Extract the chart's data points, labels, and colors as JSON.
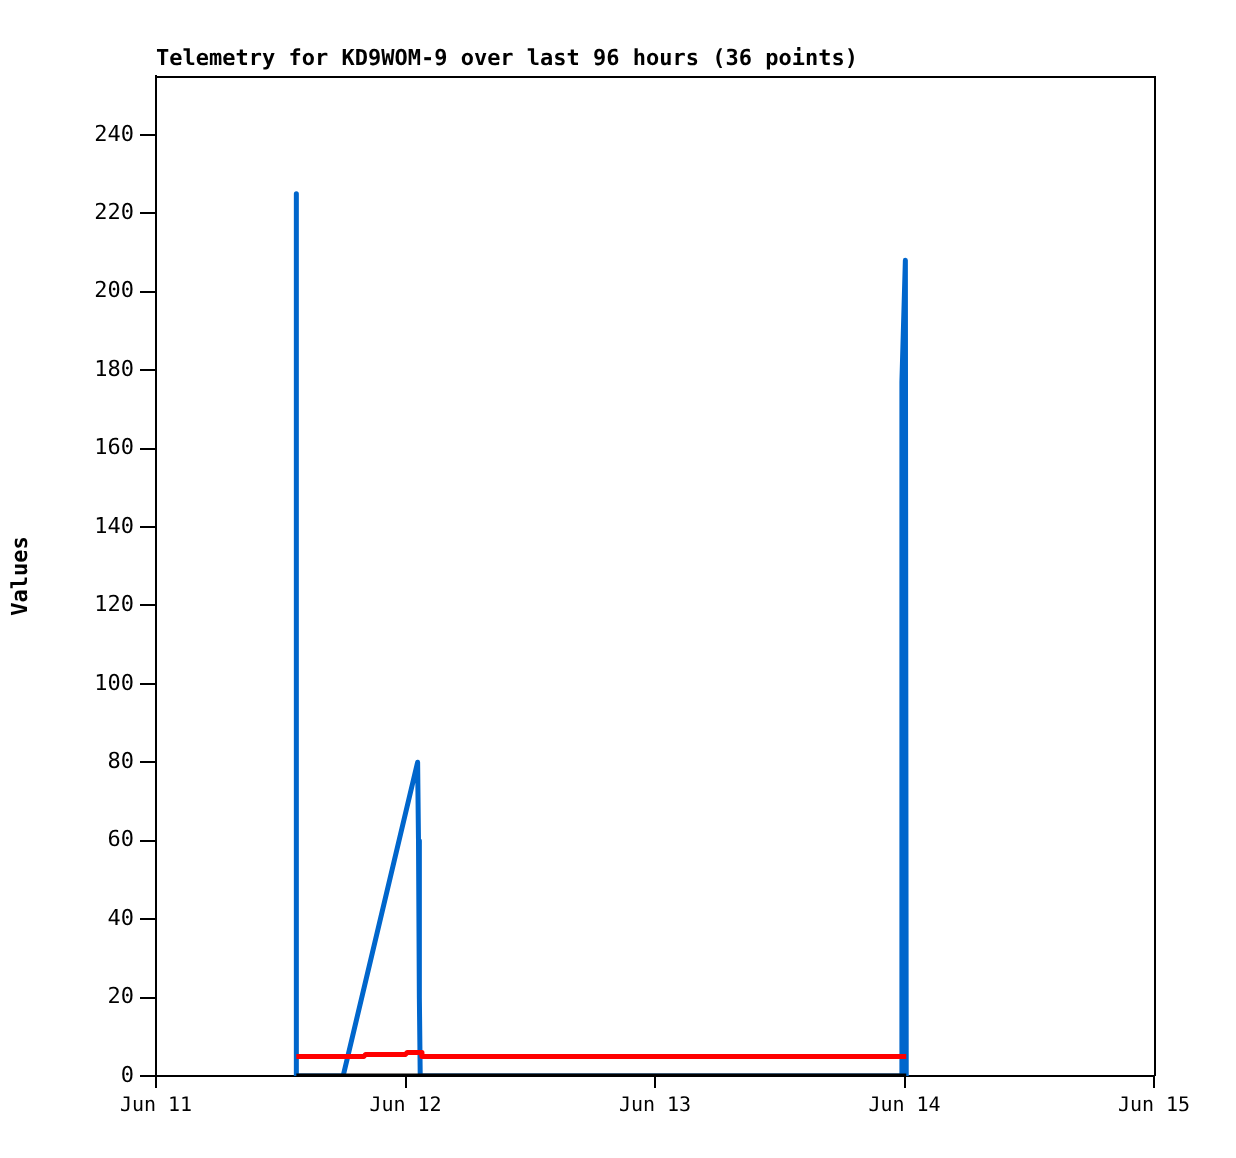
{
  "chart_data": {
    "type": "line",
    "title": "Telemetry for KD9WOM-9 over last 96 hours (36 points)",
    "ylabel": "Values",
    "xlim": [
      "--06-11",
      "--06-15"
    ],
    "xticks": [
      {
        "value": "--06-11",
        "label": "Jun 11"
      },
      {
        "value": "--06-12",
        "label": "Jun 12"
      },
      {
        "value": "--06-13",
        "label": "Jun 13"
      },
      {
        "value": "--06-14",
        "label": "Jun 14"
      },
      {
        "value": "--06-15",
        "label": "Jun 15"
      }
    ],
    "ylim": [
      0,
      255
    ],
    "yticks": [
      0,
      20,
      40,
      60,
      80,
      100,
      120,
      140,
      160,
      180,
      200,
      220,
      240
    ],
    "grid": false,
    "legend": false,
    "marker": "none",
    "line_style": "solid",
    "series": [
      {
        "color": "#000000",
        "x": [
          "--06-11T13:30",
          "--06-14T00:10"
        ],
        "values": [
          0,
          0
        ]
      },
      {
        "color": "#ff0000",
        "x": [
          "--06-11T13:30",
          "--06-11T20:00",
          "--06-11T20:10",
          "--06-12T00:00",
          "--06-12T00:10",
          "--06-12T01:30",
          "--06-12T01:35",
          "--06-14T00:10"
        ],
        "values": [
          5,
          5,
          5.5,
          5.5,
          6,
          6,
          5,
          5
        ]
      },
      {
        "color": "#0066cc",
        "x": [
          "--06-11T13:30",
          "--06-11T13:30",
          "--06-11T18:00",
          "--06-12T01:10",
          "--06-12T01:15",
          "--06-12T01:20",
          "--06-12T01:25",
          "--06-13T23:40",
          "--06-13T23:45",
          "--06-14T00:05",
          "--06-14T00:10"
        ],
        "values": [
          225,
          0,
          0,
          80,
          60,
          20,
          0,
          0,
          177,
          208,
          0
        ]
      }
    ]
  }
}
